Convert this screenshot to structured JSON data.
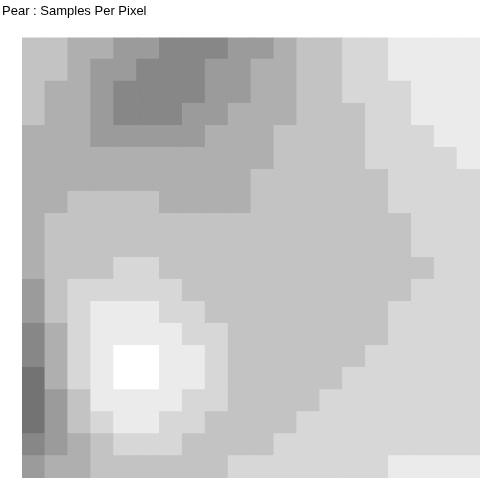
{
  "chart_data": {
    "type": "heatmap",
    "title": "Pear : Samples Per Pixel",
    "tick_labels": false,
    "cells": [
      [
        3,
        3,
        4,
        4,
        5,
        5,
        6,
        6,
        6,
        5,
        5,
        4,
        3,
        3,
        2,
        2,
        1,
        1,
        1,
        1
      ],
      [
        3,
        3,
        4,
        5,
        5,
        6,
        6,
        6,
        5,
        5,
        4,
        4,
        3,
        3,
        2,
        2,
        1,
        1,
        1,
        1
      ],
      [
        3,
        4,
        4,
        5,
        6,
        6,
        6,
        6,
        5,
        5,
        4,
        4,
        3,
        3,
        2,
        2,
        2,
        1,
        1,
        1
      ],
      [
        3,
        4,
        4,
        5,
        6,
        6,
        6,
        5,
        5,
        4,
        4,
        4,
        3,
        3,
        3,
        2,
        2,
        1,
        1,
        1
      ],
      [
        4,
        4,
        4,
        5,
        5,
        5,
        5,
        5,
        4,
        4,
        4,
        3,
        3,
        3,
        3,
        2,
        2,
        2,
        1,
        1
      ],
      [
        4,
        4,
        4,
        4,
        4,
        4,
        4,
        4,
        4,
        4,
        4,
        3,
        3,
        3,
        3,
        2,
        2,
        2,
        2,
        1
      ],
      [
        4,
        4,
        4,
        4,
        4,
        4,
        4,
        4,
        4,
        4,
        3,
        3,
        3,
        3,
        3,
        3,
        2,
        2,
        2,
        2
      ],
      [
        4,
        4,
        3,
        3,
        3,
        3,
        4,
        4,
        4,
        4,
        3,
        3,
        3,
        3,
        3,
        3,
        2,
        2,
        2,
        2
      ],
      [
        4,
        3,
        3,
        3,
        3,
        3,
        3,
        3,
        3,
        3,
        3,
        3,
        3,
        3,
        3,
        3,
        3,
        2,
        2,
        2
      ],
      [
        4,
        3,
        3,
        3,
        3,
        3,
        3,
        3,
        3,
        3,
        3,
        3,
        3,
        3,
        3,
        3,
        3,
        2,
        2,
        2
      ],
      [
        4,
        3,
        3,
        3,
        2,
        2,
        3,
        3,
        3,
        3,
        3,
        3,
        3,
        3,
        3,
        3,
        3,
        3,
        2,
        2
      ],
      [
        5,
        3,
        2,
        2,
        2,
        2,
        2,
        3,
        3,
        3,
        3,
        3,
        3,
        3,
        3,
        3,
        3,
        2,
        2,
        2
      ],
      [
        5,
        3,
        2,
        1,
        1,
        1,
        2,
        2,
        3,
        3,
        3,
        3,
        3,
        3,
        3,
        3,
        2,
        2,
        2,
        2
      ],
      [
        6,
        4,
        2,
        1,
        1,
        1,
        1,
        2,
        2,
        3,
        3,
        3,
        3,
        3,
        3,
        3,
        2,
        2,
        2,
        2
      ],
      [
        6,
        4,
        2,
        1,
        0,
        0,
        1,
        1,
        2,
        3,
        3,
        3,
        3,
        3,
        3,
        2,
        2,
        2,
        2,
        2
      ],
      [
        7,
        4,
        2,
        1,
        0,
        0,
        1,
        1,
        2,
        3,
        3,
        3,
        3,
        3,
        2,
        2,
        2,
        2,
        2,
        2
      ],
      [
        7,
        5,
        3,
        1,
        1,
        1,
        1,
        2,
        2,
        3,
        3,
        3,
        3,
        2,
        2,
        2,
        2,
        2,
        2,
        2
      ],
      [
        7,
        5,
        3,
        2,
        1,
        1,
        2,
        2,
        3,
        3,
        3,
        3,
        2,
        2,
        2,
        2,
        2,
        2,
        2,
        2
      ],
      [
        6,
        5,
        4,
        3,
        2,
        2,
        2,
        3,
        3,
        3,
        3,
        2,
        2,
        2,
        2,
        2,
        2,
        2,
        2,
        2
      ],
      [
        5,
        4,
        4,
        3,
        3,
        3,
        3,
        3,
        3,
        2,
        2,
        2,
        2,
        2,
        2,
        2,
        1,
        1,
        1,
        1
      ]
    ]
  }
}
